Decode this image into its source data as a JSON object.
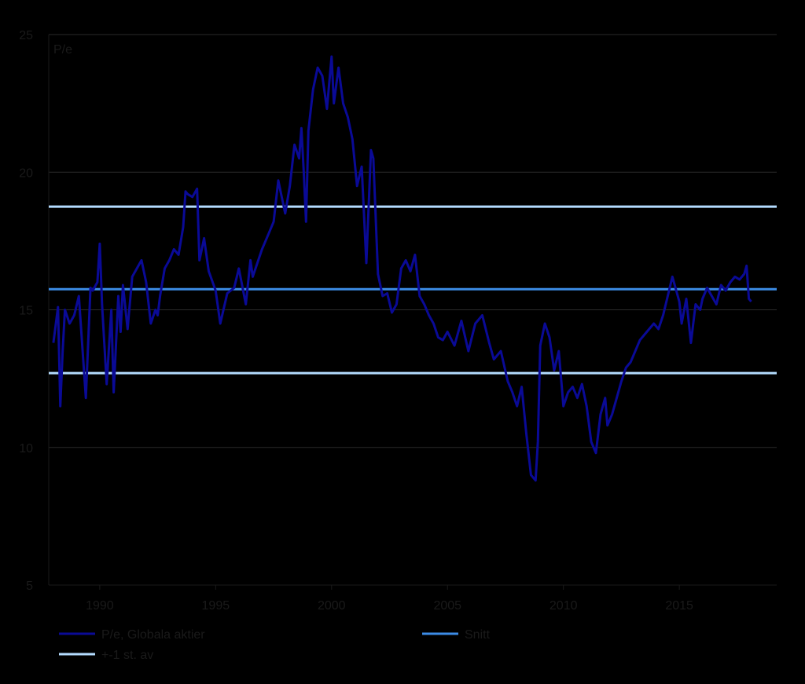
{
  "chart_data": {
    "type": "line",
    "unit_label": "P/e",
    "title": "",
    "xlabel": "",
    "ylabel": "",
    "xlim": [
      1987.8,
      2019.2
    ],
    "ylim": [
      5,
      25
    ],
    "x_ticks": [
      1990,
      1995,
      2000,
      2005,
      2010,
      2015
    ],
    "x_tick_labels": [
      "1990",
      "1995",
      "2000",
      "2005",
      "2010",
      "2015"
    ],
    "y_ticks": [
      5,
      10,
      15,
      20,
      25
    ],
    "y_tick_labels": [
      "5",
      "10",
      "15",
      "20",
      "25"
    ],
    "grid": "horizontal",
    "legend_position": "bottom",
    "series": [
      {
        "name": "P/e, Globala aktier",
        "color": "#0a0a96",
        "x": [
          1988.0,
          1988.2,
          1988.3,
          1988.4,
          1988.5,
          1988.7,
          1988.9,
          1989.1,
          1989.4,
          1989.6,
          1989.7,
          1989.9,
          1990.0,
          1990.1,
          1990.3,
          1990.5,
          1990.6,
          1990.8,
          1990.9,
          1991.0,
          1991.2,
          1991.4,
          1991.6,
          1991.8,
          1992.0,
          1992.2,
          1992.4,
          1992.5,
          1992.6,
          1992.8,
          1993.0,
          1993.2,
          1993.4,
          1993.6,
          1993.7,
          1993.8,
          1994.0,
          1994.2,
          1994.3,
          1994.5,
          1994.7,
          1995.0,
          1995.2,
          1995.5,
          1995.8,
          1996.0,
          1996.3,
          1996.5,
          1996.6,
          1996.8,
          1997.0,
          1997.3,
          1997.5,
          1997.7,
          1997.8,
          1998.0,
          1998.2,
          1998.4,
          1998.6,
          1998.7,
          1998.8,
          1998.9,
          1999.0,
          1999.2,
          1999.4,
          1999.6,
          1999.8,
          2000.0,
          2000.1,
          2000.3,
          2000.5,
          2000.7,
          2000.9,
          2001.1,
          2001.3,
          2001.5,
          2001.7,
          2001.8,
          2002.0,
          2002.2,
          2002.4,
          2002.6,
          2002.8,
          2003.0,
          2003.2,
          2003.4,
          2003.6,
          2003.8,
          2004.0,
          2004.2,
          2004.4,
          2004.6,
          2004.8,
          2005.0,
          2005.3,
          2005.6,
          2005.9,
          2006.2,
          2006.5,
          2006.8,
          2007.0,
          2007.3,
          2007.6,
          2007.8,
          2008.0,
          2008.2,
          2008.4,
          2008.6,
          2008.8,
          2008.9,
          2009.0,
          2009.2,
          2009.4,
          2009.6,
          2009.8,
          2010.0,
          2010.2,
          2010.4,
          2010.6,
          2010.8,
          2011.0,
          2011.2,
          2011.4,
          2011.6,
          2011.8,
          2011.9,
          2012.1,
          2012.3,
          2012.5,
          2012.7,
          2012.9,
          2013.1,
          2013.3,
          2013.5,
          2013.7,
          2013.9,
          2014.1,
          2014.3,
          2014.5,
          2014.7,
          2014.9,
          2015.0,
          2015.1,
          2015.3,
          2015.5,
          2015.7,
          2015.9,
          2016.0,
          2016.2,
          2016.4,
          2016.6,
          2016.8,
          2017.0,
          2017.2,
          2017.4,
          2017.6,
          2017.8,
          2017.9,
          2018.0,
          2018.1
        ],
        "values": [
          13.8,
          15.1,
          11.5,
          13.5,
          15.0,
          14.5,
          14.8,
          15.5,
          11.8,
          15.8,
          15.7,
          16.0,
          17.4,
          15.2,
          12.3,
          15.0,
          12.0,
          15.5,
          14.2,
          15.9,
          14.3,
          16.2,
          16.5,
          16.8,
          16.0,
          14.5,
          15.0,
          14.8,
          15.5,
          16.5,
          16.8,
          17.2,
          17.0,
          18.0,
          19.3,
          19.2,
          19.1,
          19.4,
          16.8,
          17.6,
          16.4,
          15.7,
          14.5,
          15.6,
          15.8,
          16.5,
          15.2,
          16.8,
          16.2,
          16.7,
          17.2,
          17.8,
          18.2,
          19.7,
          19.3,
          18.5,
          19.5,
          21.0,
          20.5,
          21.6,
          20.0,
          18.2,
          21.5,
          23.0,
          23.8,
          23.5,
          22.3,
          24.2,
          22.5,
          23.8,
          22.5,
          22.0,
          21.2,
          19.5,
          20.2,
          16.7,
          20.8,
          20.5,
          16.3,
          15.5,
          15.6,
          14.9,
          15.2,
          16.5,
          16.8,
          16.4,
          17.0,
          15.5,
          15.2,
          14.8,
          14.5,
          14.0,
          13.9,
          14.2,
          13.7,
          14.6,
          13.5,
          14.5,
          14.8,
          13.8,
          13.2,
          13.5,
          12.4,
          12.0,
          11.5,
          12.2,
          10.5,
          9.0,
          8.8,
          10.2,
          13.7,
          14.5,
          14.0,
          12.8,
          13.5,
          11.5,
          12.0,
          12.2,
          11.8,
          12.3,
          11.5,
          10.2,
          9.8,
          11.2,
          11.8,
          10.8,
          11.2,
          11.8,
          12.4,
          12.9,
          13.1,
          13.5,
          13.9,
          14.1,
          14.3,
          14.5,
          14.3,
          14.8,
          15.5,
          16.2,
          15.6,
          15.3,
          14.5,
          15.4,
          13.8,
          15.2,
          15.0,
          15.4,
          15.8,
          15.5,
          15.2,
          15.9,
          15.7,
          16.0,
          16.2,
          16.1,
          16.3,
          16.6,
          15.4,
          15.3
        ]
      },
      {
        "name": "Snitt",
        "color": "#3c8ce6",
        "x": [
          1987.8,
          2019.2
        ],
        "values": [
          15.75,
          15.75
        ]
      },
      {
        "name": "+-1 st. av",
        "color": "#b4dcff",
        "x": [
          1987.8,
          2019.2
        ],
        "values": [
          18.75,
          18.75
        ],
        "values_lower": [
          12.7,
          12.7
        ]
      }
    ]
  }
}
